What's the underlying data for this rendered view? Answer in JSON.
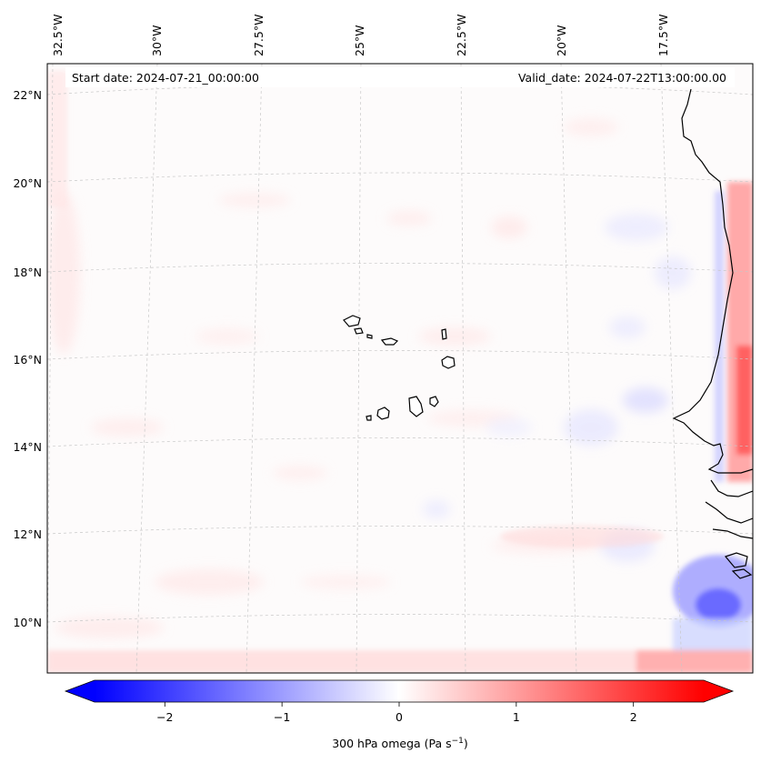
{
  "header": {
    "start_date": "Start date: 2024-07-21_00:00:00",
    "valid_date": "Valid_date: 2024-07-22T13:00:00.00"
  },
  "axes": {
    "lon_labels": [
      "32.5°W",
      "30°W",
      "27.5°W",
      "25°W",
      "22.5°W",
      "20°W",
      "17.5°W"
    ],
    "lat_labels": [
      "22°N",
      "20°N",
      "18°N",
      "16°N",
      "14°N",
      "12°N",
      "10°N"
    ]
  },
  "colorbar": {
    "min": -2.6,
    "max": 2.6,
    "ticks": [
      -2,
      -1,
      0,
      1,
      2
    ],
    "tick_labels": [
      "−2",
      "−1",
      "0",
      "1",
      "2"
    ],
    "label_main": "300 hPa omega (Pa s",
    "label_exp": "−1",
    "label_end": ")",
    "colors": {
      "negative": "#0000ff",
      "zero": "#ffffff",
      "positive": "#ff0000"
    }
  }
}
